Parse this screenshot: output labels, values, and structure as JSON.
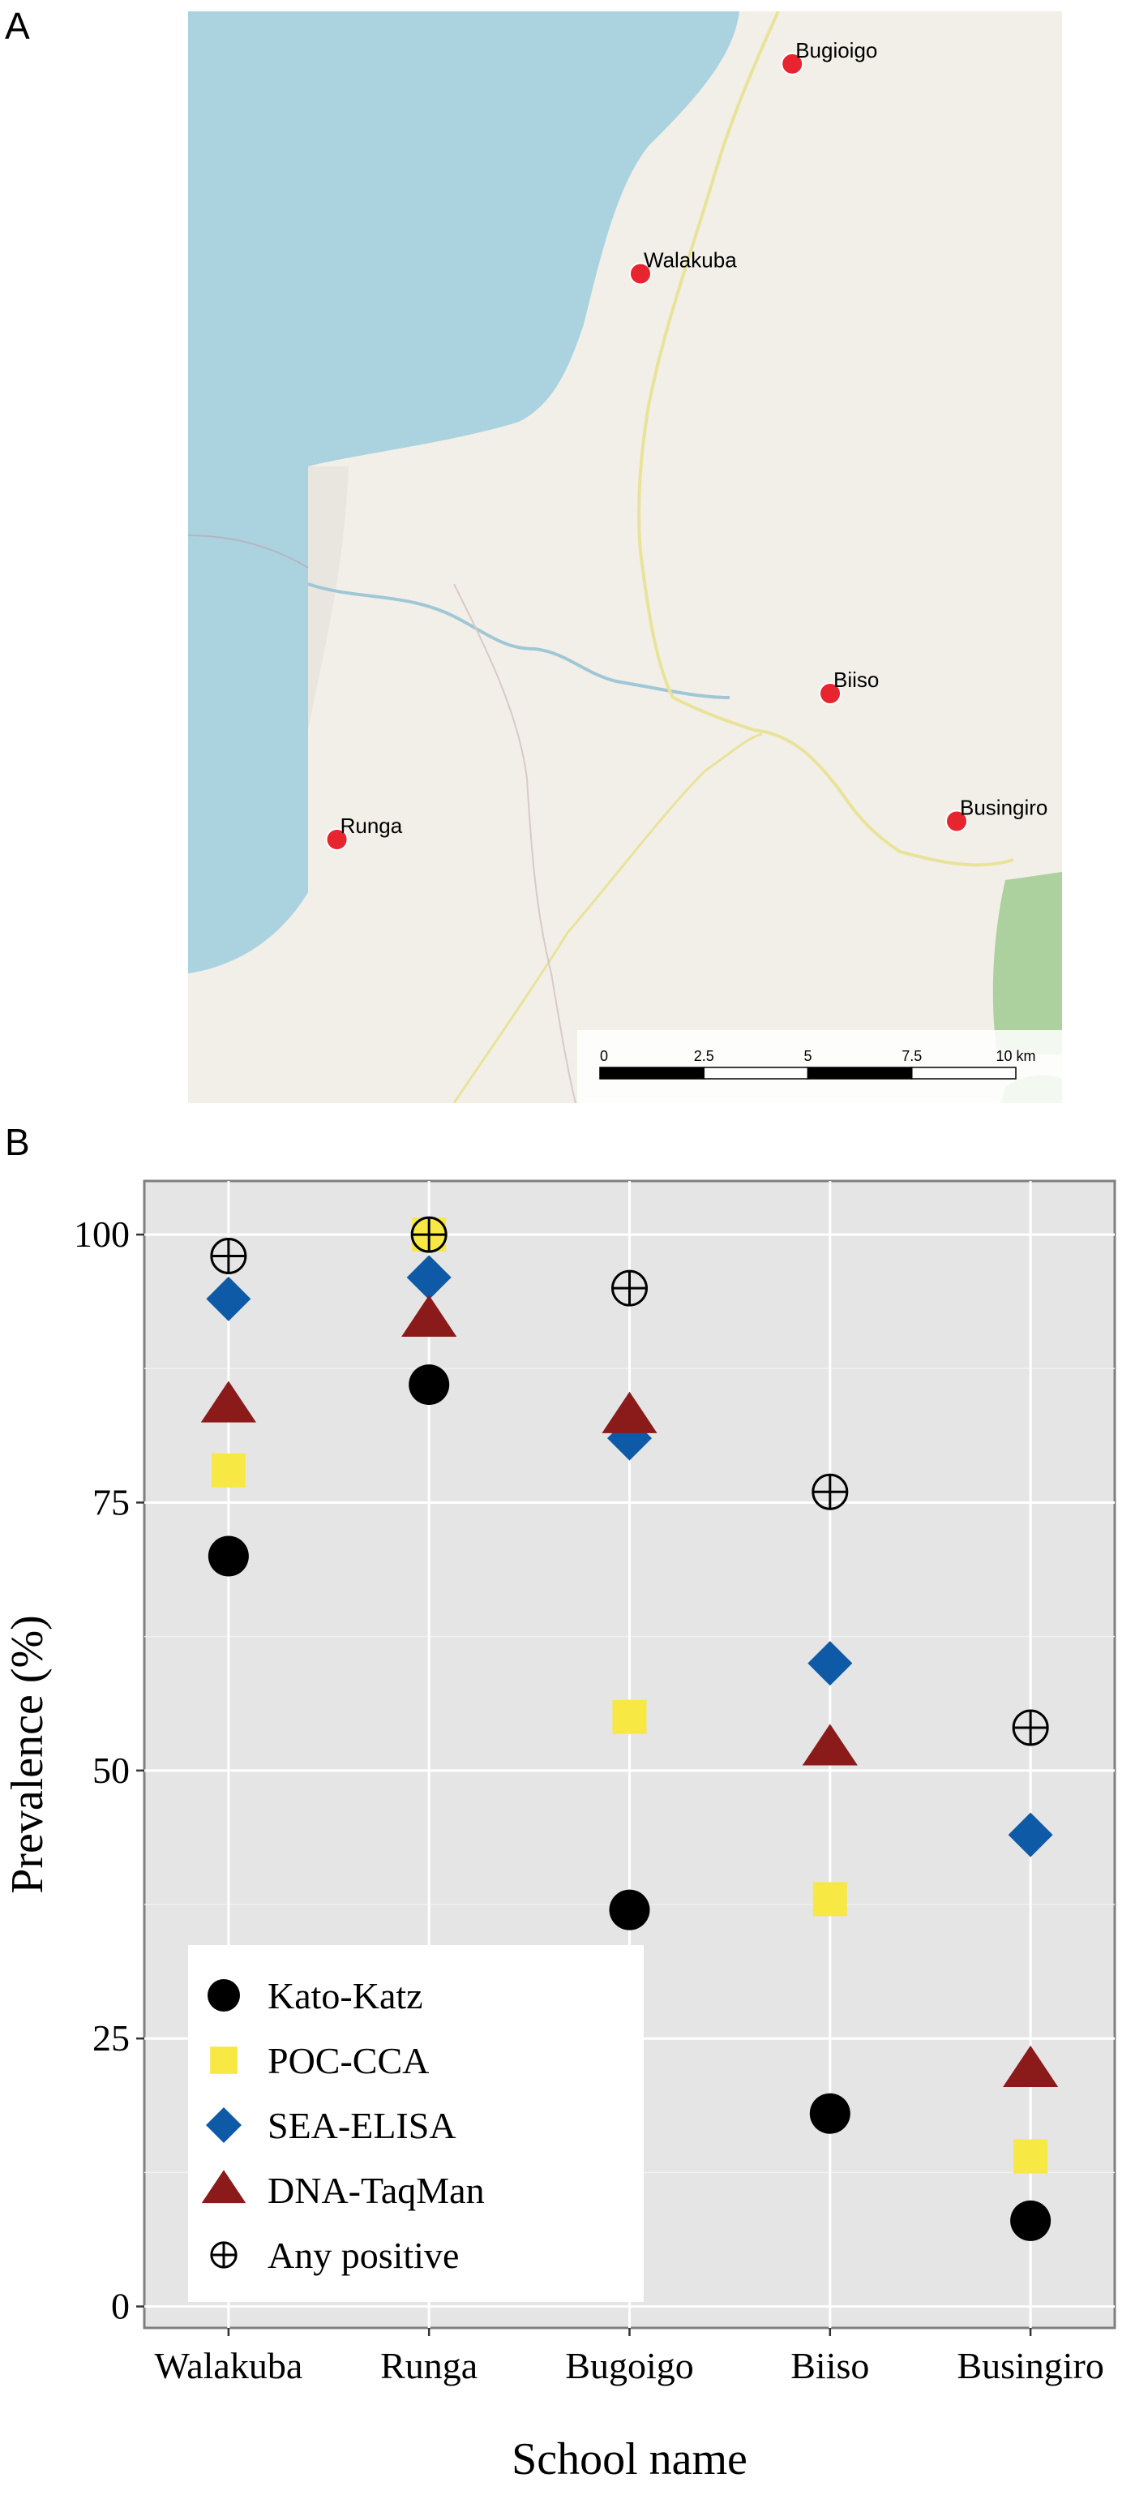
{
  "panels": {
    "a_label": "A",
    "b_label": "B"
  },
  "map": {
    "towns": [
      {
        "name": "Bugioigo",
        "lon_km": 12.6,
        "lat_km": 33.9
      },
      {
        "name": "Walakuba",
        "lon_km": 9.0,
        "lat_km": 27.0
      },
      {
        "name": "Biiso",
        "lon_km": 13.5,
        "lat_km": 13.2
      },
      {
        "name": "Busingiro",
        "lon_km": 16.5,
        "lat_km": 9.0
      },
      {
        "name": "Runga",
        "lon_km": 1.8,
        "lat_km": 8.4
      }
    ],
    "scale_bar": {
      "labels": [
        "0",
        "2.5",
        "5",
        "7.5",
        "10 km"
      ],
      "values_km": [
        0,
        2.5,
        5,
        7.5,
        10
      ]
    },
    "colors": {
      "water": "#aad3df",
      "land": "#f2efe9",
      "forest": "#add19e",
      "marker": "#e8242f",
      "road": "#e9e39a",
      "river": "#9fc7d6"
    }
  },
  "chart_data": {
    "type": "scatter",
    "categories": [
      "Walakuba",
      "Runga",
      "Bugoigo",
      "Biiso",
      "Busingiro"
    ],
    "xlabel": "School name",
    "ylabel": "Prevalence (%)",
    "ylim": [
      -2,
      105
    ],
    "yticks": [
      0,
      25,
      50,
      75,
      100
    ],
    "grid": true,
    "legend_position": "bottom-left",
    "background": "#e5e5e5",
    "series": [
      {
        "name": "Kato-Katz",
        "marker": "circle",
        "color": "#000000",
        "values": [
          70,
          86,
          37,
          18,
          8
        ]
      },
      {
        "name": "POC-CCA",
        "marker": "square",
        "color": "#f7e844",
        "values": [
          78,
          100,
          55,
          38,
          14
        ]
      },
      {
        "name": "SEA-ELISA",
        "marker": "diamond",
        "color": "#0e5aa7",
        "values": [
          94,
          96,
          81,
          60,
          44
        ]
      },
      {
        "name": "DNA-TaqMan",
        "marker": "triangle",
        "color": "#8b1a1a",
        "values": [
          84,
          92,
          83,
          52,
          22
        ]
      },
      {
        "name": "Any positive",
        "marker": "circle-plus",
        "color": "#000000",
        "values": [
          98,
          100,
          95,
          76,
          54
        ]
      }
    ]
  }
}
